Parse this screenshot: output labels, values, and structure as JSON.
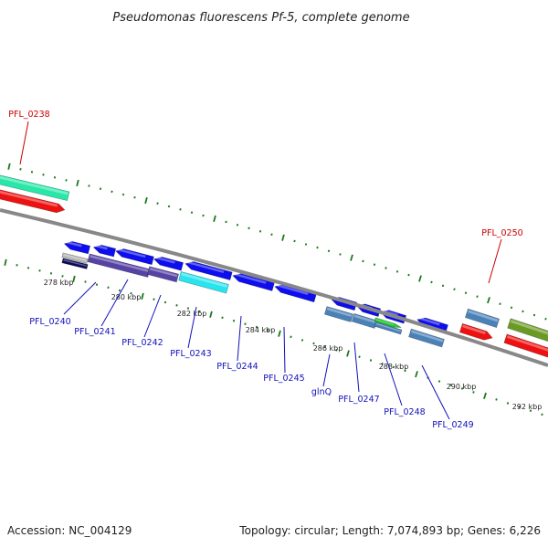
{
  "title": "Pseudomonas fluorescens Pf-5, complete genome",
  "footer": {
    "accession": "Accession: NC_004129",
    "summary": "Topology: circular; Length: 7,074,893 bp; Genes: 6,226"
  },
  "colors": {
    "blue": "#0d0dee",
    "steel": "#4a82b8",
    "cyan": "#27e4ee",
    "purple": "#5743a6",
    "red": "#ee1111",
    "teal": "#27e8a8",
    "olive": "#6a9a24",
    "green": "#22cc33",
    "navy": "#0a0a5a",
    "gray": "#bbbbbb",
    "tick": "#1a7a1a",
    "backbone": "#888888",
    "label_blue": "#1111bb",
    "label_red": "#cc0000"
  },
  "ticks": [
    {
      "label": "278 kbp"
    },
    {
      "label": "280 kbp"
    },
    {
      "label": "282 kbp"
    },
    {
      "label": "284 kbp"
    },
    {
      "label": "286 kbp"
    },
    {
      "label": "288 kbp"
    },
    {
      "label": "290 kbp"
    },
    {
      "label": "292 kbp"
    }
  ],
  "gene_labels": [
    {
      "text": "PFL_0238",
      "color": "red"
    },
    {
      "text": "PFL_0240",
      "color": "blue"
    },
    {
      "text": "PFL_0241",
      "color": "blue"
    },
    {
      "text": "PFL_0242",
      "color": "blue"
    },
    {
      "text": "PFL_0243",
      "color": "blue"
    },
    {
      "text": "PFL_0244",
      "color": "blue"
    },
    {
      "text": "PFL_0245",
      "color": "blue"
    },
    {
      "text": "glnQ",
      "color": "blue"
    },
    {
      "text": "PFL_0247",
      "color": "blue"
    },
    {
      "text": "PFL_0248",
      "color": "blue"
    },
    {
      "text": "PFL_0249",
      "color": "blue"
    },
    {
      "text": "PFL_0250",
      "color": "red"
    }
  ]
}
